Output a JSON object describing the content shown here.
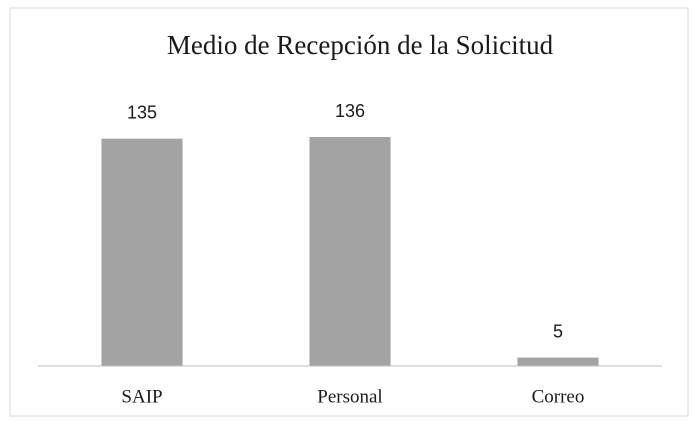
{
  "chart_data": {
    "type": "bar",
    "title": "Medio de Recepción de la Solicitud",
    "categories": [
      "SAIP",
      "Personal",
      "Correo"
    ],
    "values": [
      135,
      136,
      5
    ],
    "color": "#a3a3a3"
  }
}
